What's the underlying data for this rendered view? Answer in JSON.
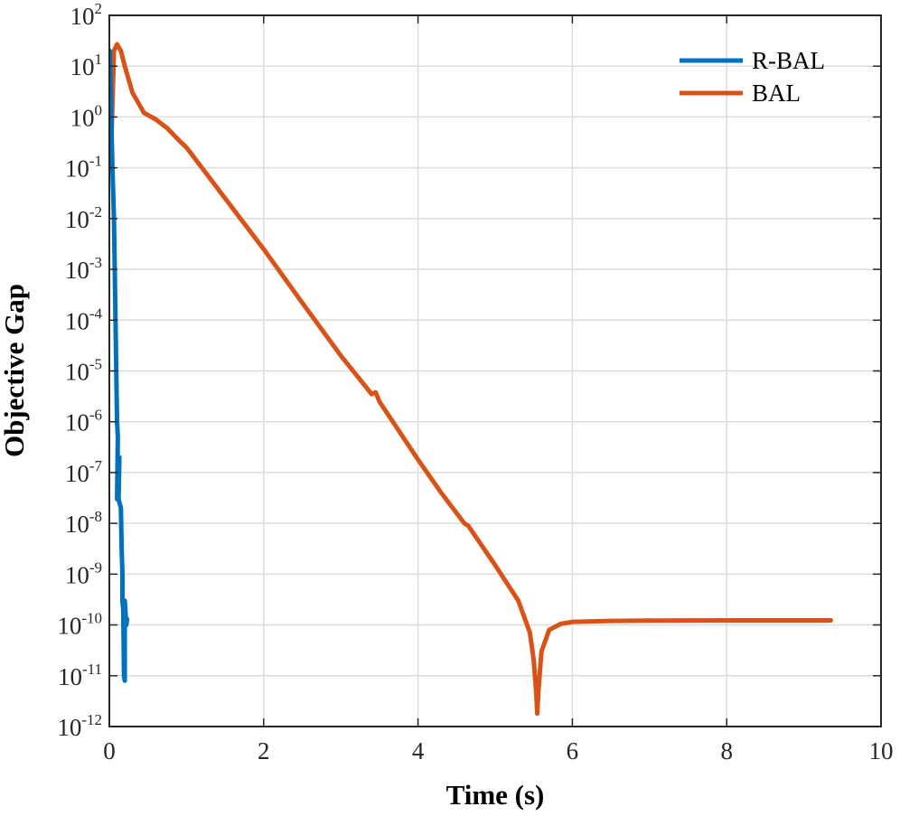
{
  "chart_data": {
    "type": "line",
    "xlabel": "Time (s)",
    "ylabel": "Objective Gap",
    "xlim": [
      0,
      10
    ],
    "ylim": [
      1e-12,
      100
    ],
    "yscale": "log",
    "grid": true,
    "legend_position": "top-right",
    "x_ticks": [
      0,
      2,
      4,
      6,
      8,
      10
    ],
    "x_tick_labels": [
      "0",
      "2",
      "4",
      "6",
      "8",
      "10"
    ],
    "y_tick_exponents": [
      2,
      1,
      0,
      -1,
      -2,
      -3,
      -4,
      -5,
      -6,
      -7,
      -8,
      -9,
      -10,
      -11,
      -12
    ],
    "y_tick_base": "10",
    "series": [
      {
        "name": "R-BAL",
        "color": "#0072BD",
        "points": [
          [
            0.0,
            2.0
          ],
          [
            0.005,
            20
          ],
          [
            0.02,
            2
          ],
          [
            0.04,
            0.1
          ],
          [
            0.06,
            0.01
          ],
          [
            0.07,
            0.001
          ],
          [
            0.08,
            0.0001
          ],
          [
            0.09,
            1e-05
          ],
          [
            0.1,
            1e-06
          ],
          [
            0.11,
            5e-07
          ],
          [
            0.1,
            3e-08
          ],
          [
            0.13,
            2e-07
          ],
          [
            0.12,
            3e-08
          ],
          [
            0.15,
            2e-08
          ],
          [
            0.16,
            3e-09
          ],
          [
            0.17,
            1e-09
          ],
          [
            0.17,
            3e-10
          ],
          [
            0.18,
            2e-10
          ],
          [
            0.19,
            1e-11
          ],
          [
            0.2,
            8e-12
          ],
          [
            0.2,
            3e-10
          ],
          [
            0.22,
            1e-10
          ],
          [
            0.23,
            1.3e-10
          ],
          [
            0.22,
            1.2e-10
          ]
        ]
      },
      {
        "name": "BAL",
        "color": "#D95319",
        "points": [
          [
            0.0,
            0.1
          ],
          [
            0.03,
            0.5
          ],
          [
            0.06,
            20
          ],
          [
            0.1,
            27
          ],
          [
            0.15,
            20
          ],
          [
            0.2,
            10
          ],
          [
            0.3,
            3
          ],
          [
            0.45,
            1.2
          ],
          [
            0.6,
            0.9
          ],
          [
            0.75,
            0.6
          ],
          [
            0.9,
            0.35
          ],
          [
            1.0,
            0.25
          ],
          [
            1.2,
            0.1
          ],
          [
            1.5,
            0.025
          ],
          [
            2.0,
            0.0025
          ],
          [
            2.5,
            0.00022
          ],
          [
            3.0,
            2e-05
          ],
          [
            3.4,
            3.5e-06
          ],
          [
            3.45,
            3.8e-06
          ],
          [
            3.5,
            2.5e-06
          ],
          [
            4.0,
            1.8e-07
          ],
          [
            4.3,
            4e-08
          ],
          [
            4.6,
            1e-08
          ],
          [
            4.65,
            9e-09
          ],
          [
            5.0,
            1.5e-09
          ],
          [
            5.3,
            3e-10
          ],
          [
            5.45,
            7e-11
          ],
          [
            5.5,
            2e-11
          ],
          [
            5.53,
            5e-12
          ],
          [
            5.545,
            1.8e-12
          ],
          [
            5.56,
            5e-12
          ],
          [
            5.6,
            3e-11
          ],
          [
            5.7,
            8e-11
          ],
          [
            5.85,
            1.05e-10
          ],
          [
            6.0,
            1.15e-10
          ],
          [
            6.5,
            1.2e-10
          ],
          [
            7.0,
            1.22e-10
          ],
          [
            8.0,
            1.23e-10
          ],
          [
            9.35,
            1.23e-10
          ]
        ]
      }
    ]
  }
}
